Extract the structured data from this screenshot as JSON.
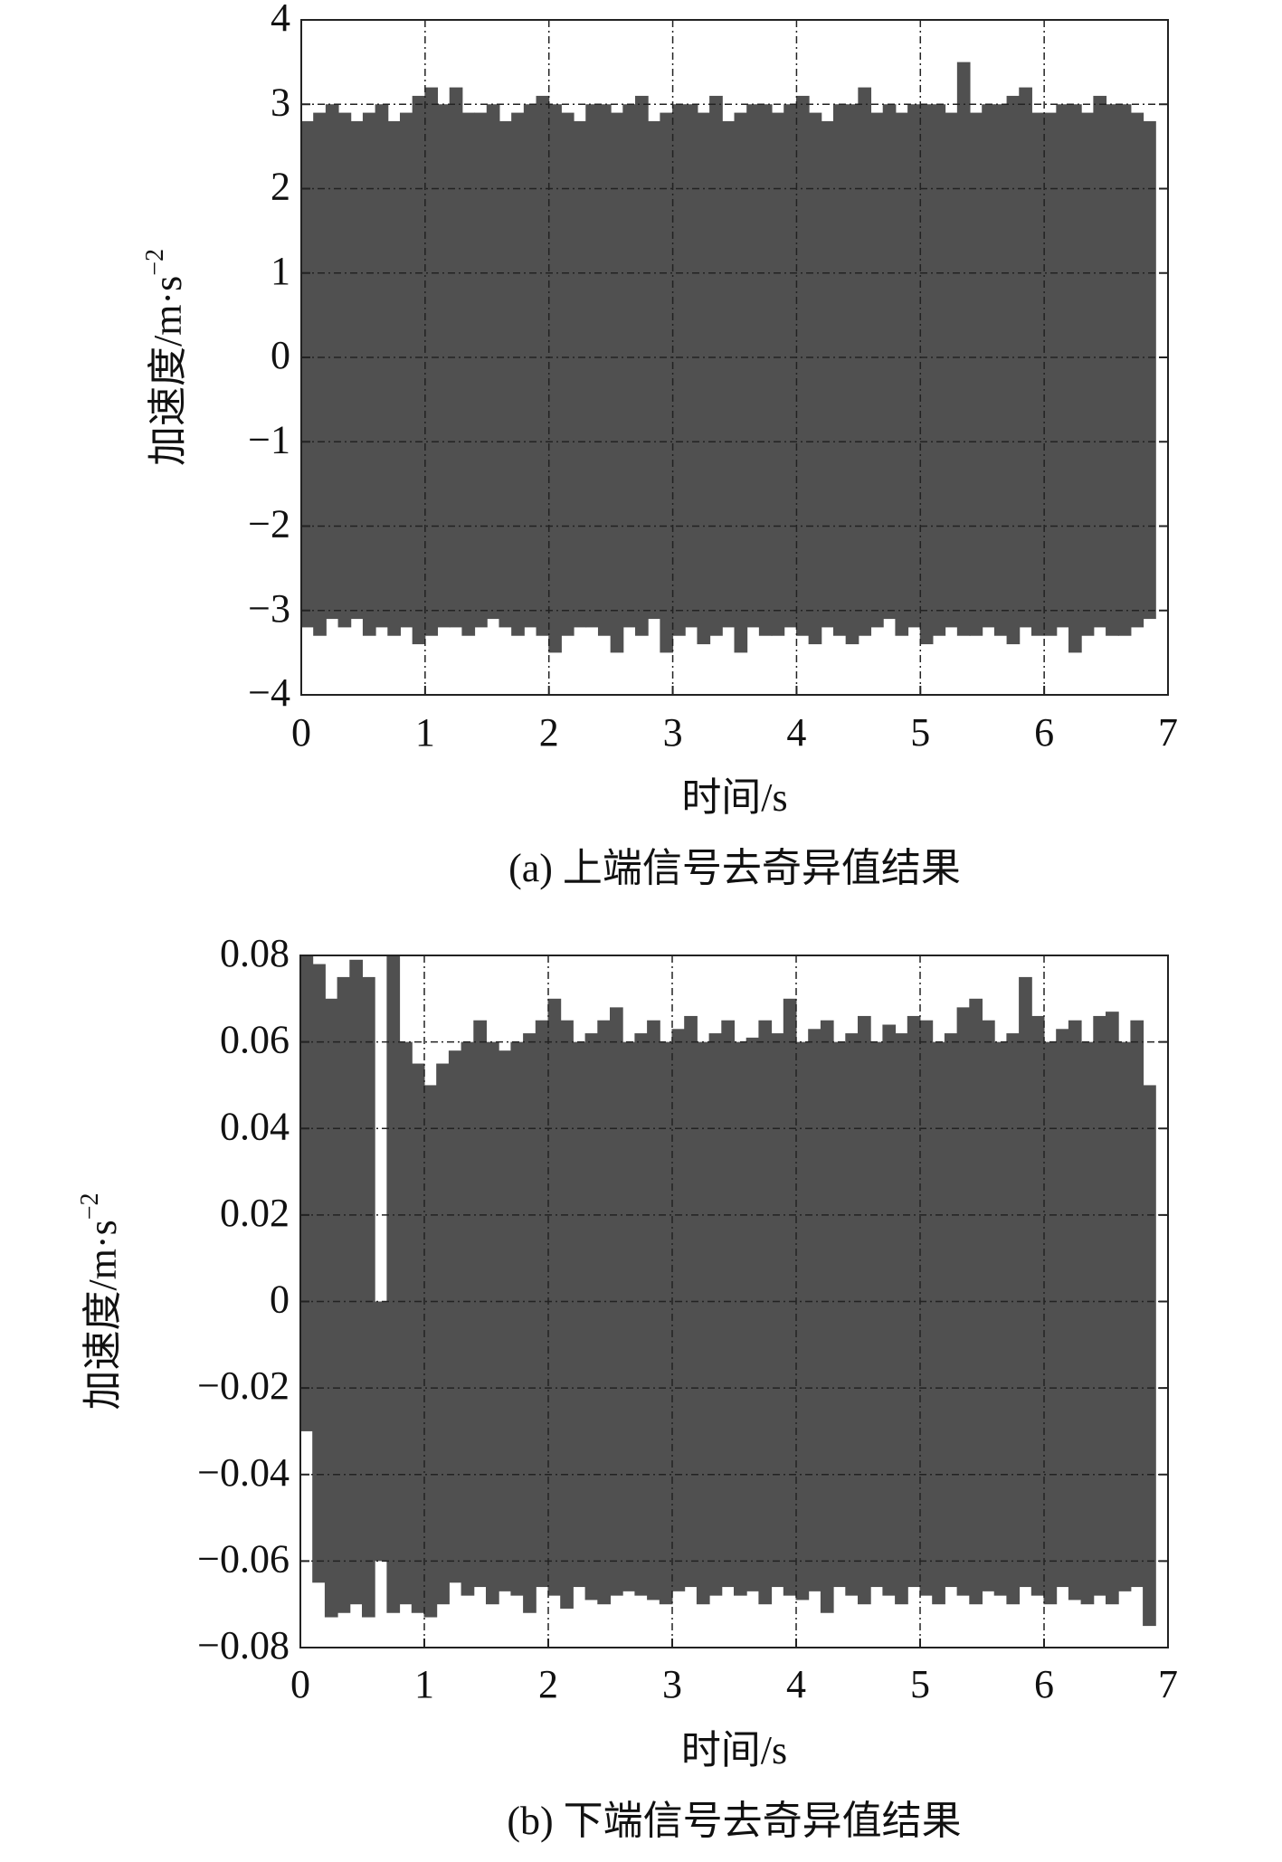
{
  "chart_data": [
    {
      "type": "range",
      "caption": "(a) 上端信号去奇异值结果",
      "xlabel": "时间/s",
      "ylabel": "加速度/m·s",
      "ylabel_sup": "−2",
      "color": "#505050",
      "grid": true,
      "x": [
        0,
        0.1,
        0.2,
        0.3,
        0.4,
        0.5,
        0.6,
        0.7,
        0.8,
        0.9,
        1,
        1.1,
        1.2,
        1.3,
        1.4,
        1.5,
        1.6,
        1.7,
        1.8,
        1.9,
        2,
        2.1,
        2.2,
        2.3,
        2.4,
        2.5,
        2.6,
        2.7,
        2.8,
        2.9,
        3,
        3.1,
        3.2,
        3.3,
        3.4,
        3.5,
        3.6,
        3.7,
        3.8,
        3.9,
        4,
        4.1,
        4.2,
        4.3,
        4.4,
        4.5,
        4.6,
        4.7,
        4.8,
        4.9,
        5,
        5.1,
        5.2,
        5.3,
        5.4,
        5.5,
        5.6,
        5.7,
        5.8,
        5.9,
        6,
        6.1,
        6.2,
        6.3,
        6.4,
        6.5,
        6.6,
        6.7,
        6.8
      ],
      "max": [
        2.8,
        2.9,
        3.0,
        2.9,
        2.8,
        2.9,
        3.0,
        2.8,
        2.9,
        3.1,
        3.2,
        3.0,
        3.2,
        2.9,
        2.9,
        3.0,
        2.8,
        2.9,
        3.0,
        3.1,
        3.0,
        2.9,
        2.8,
        3.0,
        3.0,
        2.9,
        3.0,
        3.1,
        2.8,
        2.9,
        3.0,
        3.0,
        2.9,
        3.1,
        2.8,
        2.9,
        3.0,
        3.0,
        2.9,
        3.0,
        3.1,
        2.9,
        2.8,
        3.0,
        3.0,
        3.2,
        2.9,
        3.0,
        2.9,
        3.0,
        3.0,
        3.0,
        2.9,
        3.5,
        2.9,
        3.0,
        3.0,
        3.1,
        3.2,
        2.9,
        2.9,
        3.0,
        3.0,
        2.9,
        3.1,
        3.0,
        3.0,
        2.9,
        2.8
      ],
      "min": [
        -3.2,
        -3.3,
        -3.1,
        -3.2,
        -3.1,
        -3.3,
        -3.2,
        -3.3,
        -3.2,
        -3.4,
        -3.3,
        -3.2,
        -3.2,
        -3.3,
        -3.2,
        -3.1,
        -3.2,
        -3.3,
        -3.2,
        -3.3,
        -3.5,
        -3.3,
        -3.2,
        -3.2,
        -3.3,
        -3.5,
        -3.2,
        -3.3,
        -3.1,
        -3.5,
        -3.3,
        -3.2,
        -3.4,
        -3.3,
        -3.2,
        -3.5,
        -3.2,
        -3.3,
        -3.3,
        -3.2,
        -3.3,
        -3.4,
        -3.2,
        -3.3,
        -3.4,
        -3.3,
        -3.2,
        -3.1,
        -3.3,
        -3.2,
        -3.4,
        -3.3,
        -3.2,
        -3.3,
        -3.3,
        -3.2,
        -3.3,
        -3.4,
        -3.2,
        -3.3,
        -3.3,
        -3.2,
        -3.5,
        -3.3,
        -3.2,
        -3.3,
        -3.3,
        -3.2,
        -3.1
      ],
      "xlim": [
        0,
        7
      ],
      "xticks": [
        0,
        1,
        2,
        3,
        4,
        5,
        6,
        7
      ],
      "ylim": [
        -4,
        4
      ],
      "yticks": [
        4,
        3,
        2,
        1,
        0,
        {
          "value": -1,
          "label": "−1"
        },
        {
          "value": -2,
          "label": "−2"
        },
        {
          "value": -3,
          "label": "−3"
        },
        {
          "value": -4,
          "label": "−4"
        }
      ]
    },
    {
      "type": "range",
      "caption": "(b) 下端信号去奇异值结果",
      "xlabel": "时间/s",
      "ylabel": "加速度/m·s",
      "ylabel_sup": "−2",
      "color": "#505050",
      "grid": true,
      "x": [
        0,
        0.1,
        0.2,
        0.3,
        0.4,
        0.5,
        0.6,
        0.7,
        0.8,
        0.9,
        1,
        1.1,
        1.2,
        1.3,
        1.4,
        1.5,
        1.6,
        1.7,
        1.8,
        1.9,
        2,
        2.1,
        2.2,
        2.3,
        2.4,
        2.5,
        2.6,
        2.7,
        2.8,
        2.9,
        3,
        3.1,
        3.2,
        3.3,
        3.4,
        3.5,
        3.6,
        3.7,
        3.8,
        3.9,
        4,
        4.1,
        4.2,
        4.3,
        4.4,
        4.5,
        4.6,
        4.7,
        4.8,
        4.9,
        5,
        5.1,
        5.2,
        5.3,
        5.4,
        5.5,
        5.6,
        5.7,
        5.8,
        5.9,
        6,
        6.1,
        6.2,
        6.3,
        6.4,
        6.5,
        6.6,
        6.7,
        6.8
      ],
      "max": [
        0.08,
        0.078,
        0.07,
        0.075,
        0.079,
        0.075,
        0.0,
        0.08,
        0.06,
        0.055,
        0.05,
        0.055,
        0.058,
        0.06,
        0.065,
        0.06,
        0.058,
        0.06,
        0.062,
        0.065,
        0.07,
        0.065,
        0.06,
        0.062,
        0.065,
        0.068,
        0.06,
        0.062,
        0.065,
        0.06,
        0.063,
        0.066,
        0.06,
        0.062,
        0.065,
        0.06,
        0.061,
        0.065,
        0.062,
        0.07,
        0.06,
        0.063,
        0.065,
        0.06,
        0.062,
        0.066,
        0.06,
        0.064,
        0.062,
        0.066,
        0.065,
        0.06,
        0.062,
        0.068,
        0.07,
        0.065,
        0.06,
        0.062,
        0.075,
        0.066,
        0.06,
        0.063,
        0.065,
        0.06,
        0.066,
        0.067,
        0.06,
        0.065,
        0.05
      ],
      "min": [
        -0.03,
        -0.065,
        -0.073,
        -0.072,
        -0.07,
        -0.073,
        -0.06,
        -0.072,
        -0.07,
        -0.072,
        -0.073,
        -0.07,
        -0.065,
        -0.068,
        -0.066,
        -0.07,
        -0.067,
        -0.068,
        -0.072,
        -0.066,
        -0.068,
        -0.071,
        -0.066,
        -0.069,
        -0.07,
        -0.068,
        -0.067,
        -0.068,
        -0.069,
        -0.07,
        -0.067,
        -0.066,
        -0.07,
        -0.068,
        -0.066,
        -0.068,
        -0.067,
        -0.07,
        -0.066,
        -0.068,
        -0.069,
        -0.067,
        -0.072,
        -0.066,
        -0.068,
        -0.07,
        -0.066,
        -0.068,
        -0.07,
        -0.066,
        -0.068,
        -0.07,
        -0.066,
        -0.068,
        -0.07,
        -0.067,
        -0.068,
        -0.07,
        -0.066,
        -0.068,
        -0.07,
        -0.066,
        -0.069,
        -0.07,
        -0.068,
        -0.07,
        -0.067,
        -0.066,
        -0.075
      ],
      "xlim": [
        0,
        7
      ],
      "xticks": [
        0,
        1,
        2,
        3,
        4,
        5,
        6,
        7
      ],
      "ylim": [
        -0.08,
        0.08
      ],
      "yticks": [
        0.08,
        0.06,
        0.04,
        0.02,
        0,
        {
          "value": -0.02,
          "label": "−0.02"
        },
        {
          "value": -0.04,
          "label": "−0.04"
        },
        {
          "value": -0.06,
          "label": "−0.06"
        },
        {
          "value": -0.08,
          "label": "−0.08"
        }
      ]
    }
  ]
}
